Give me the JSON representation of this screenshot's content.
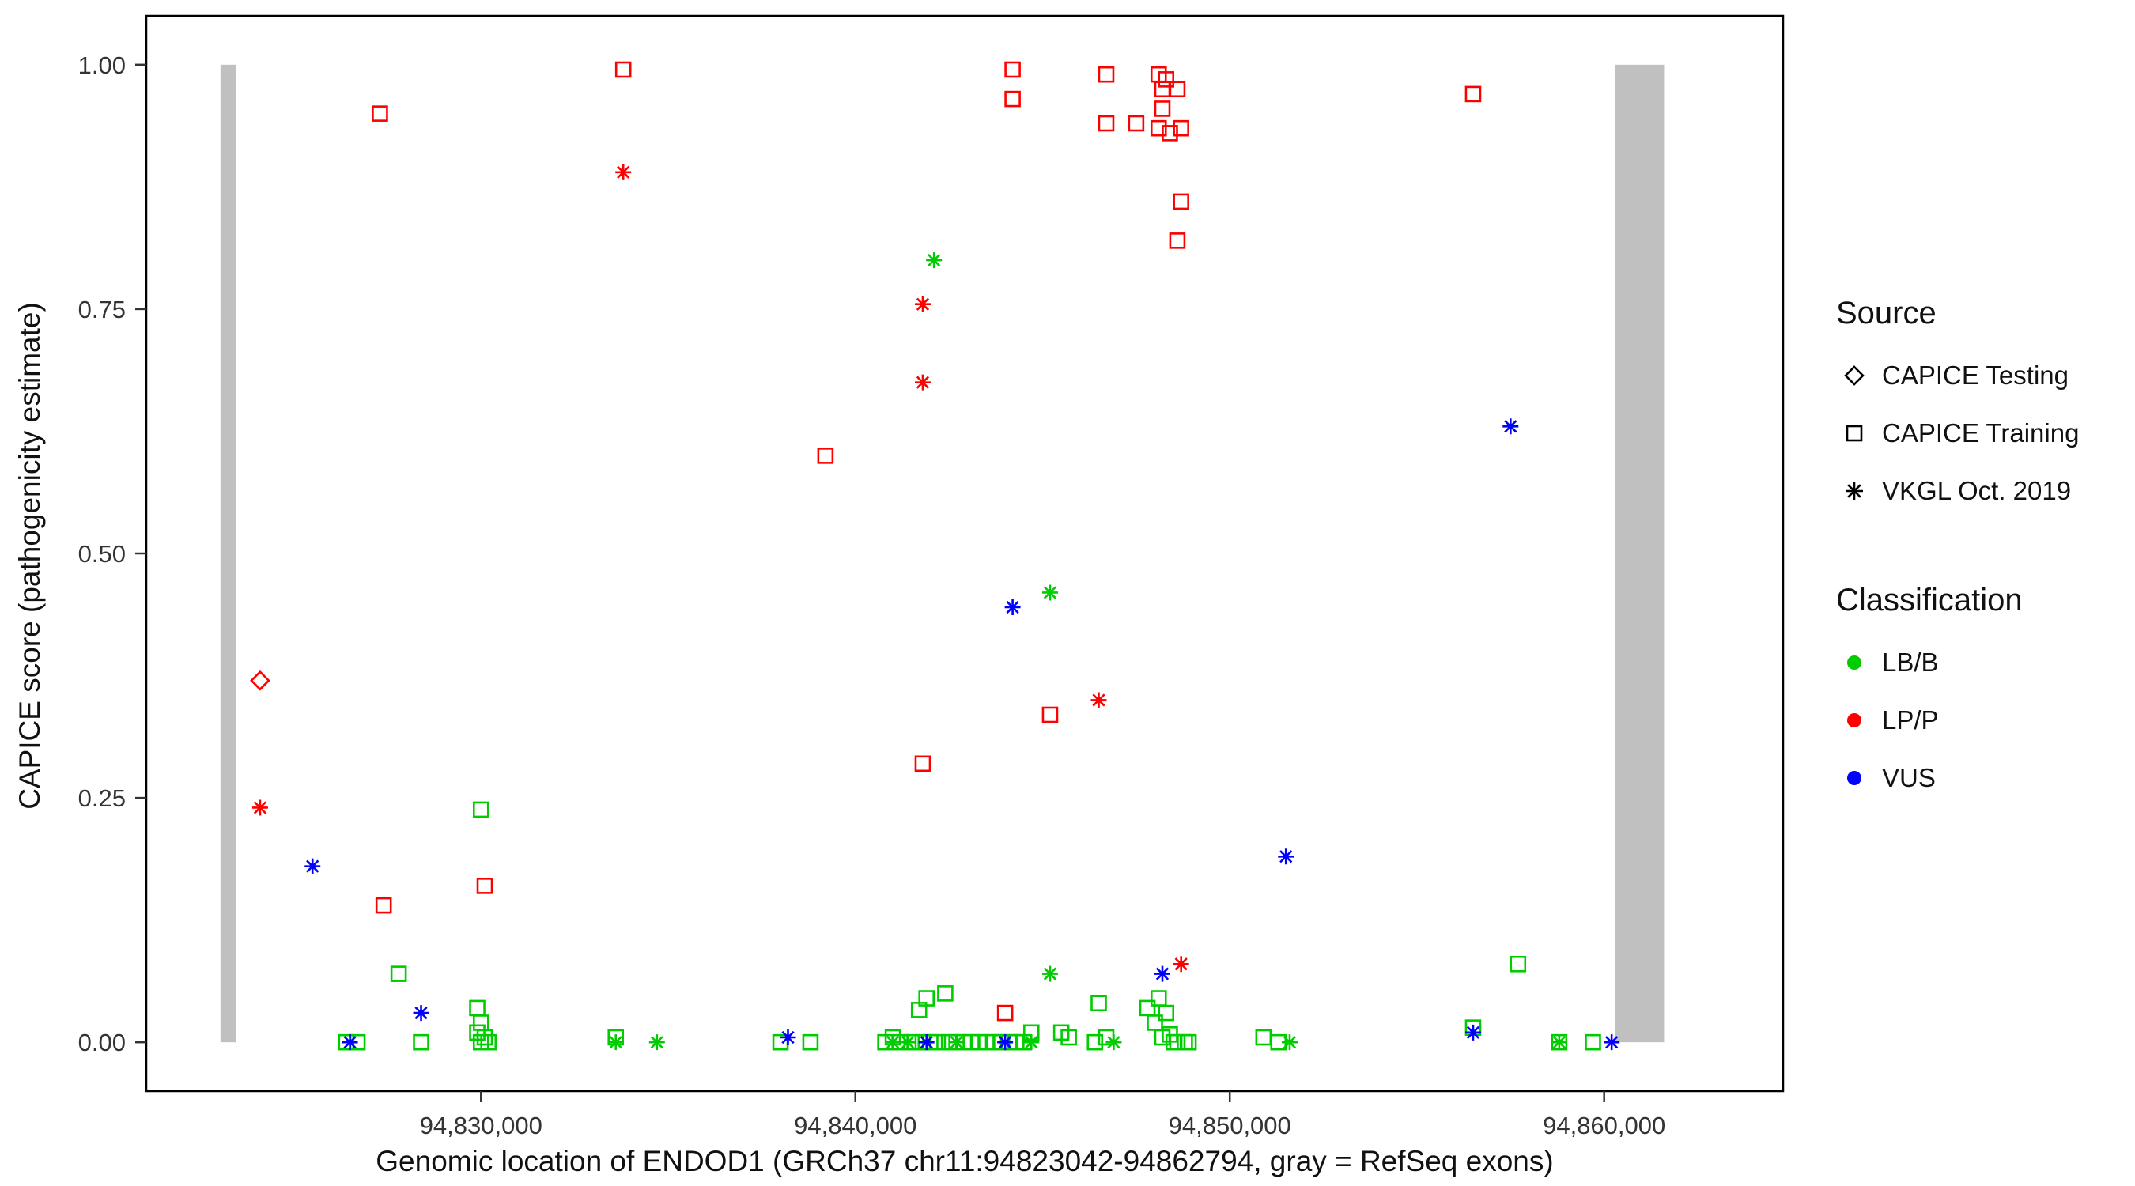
{
  "legend": {
    "source": {
      "title": "Source",
      "items": [
        {
          "label": "CAPICE Testing",
          "shape": "diamond"
        },
        {
          "label": "CAPICE Training",
          "shape": "square"
        },
        {
          "label": "VKGL Oct. 2019",
          "shape": "asterisk"
        }
      ]
    },
    "classification": {
      "title": "Classification",
      "items": [
        {
          "label": "LB/B",
          "color": "#00CC00"
        },
        {
          "label": "LP/P",
          "color": "#FF0000"
        },
        {
          "label": "VUS",
          "color": "#0000FF"
        }
      ]
    }
  },
  "chart_data": {
    "type": "scatter",
    "title": "",
    "xlabel": "Genomic location of ENDOD1 (GRCh37 chr11:94823042-94862794, gray = RefSeq exons)",
    "ylabel": "CAPICE score (pathogenicity estimate)",
    "xlim": [
      94821060,
      94864780
    ],
    "ylim": [
      -0.05,
      1.05
    ],
    "grid": false,
    "legend_position": "right",
    "x_ticks": [
      {
        "value": 94830000,
        "label": "94,830,000"
      },
      {
        "value": 94840000,
        "label": "94,840,000"
      },
      {
        "value": 94850000,
        "label": "94,850,000"
      },
      {
        "value": 94860000,
        "label": "94,860,000"
      }
    ],
    "y_ticks": [
      {
        "value": 1.0,
        "label": "1.00"
      },
      {
        "value": 0.75,
        "label": "0.75"
      },
      {
        "value": 0.5,
        "label": "0.50"
      },
      {
        "value": 0.25,
        "label": "0.25"
      },
      {
        "value": 0.0,
        "label": "0.00"
      }
    ],
    "exon_color": "#C0C0C0",
    "exon_bars": [
      {
        "x0": 94823042,
        "x1": 94823450,
        "y0": 0.0,
        "y1": 1.0
      },
      {
        "x0": 94860300,
        "x1": 94861600,
        "y0": 0.0,
        "y1": 1.0
      }
    ],
    "series": [
      {
        "name": "CAPICE Testing / LP/P",
        "source": "CAPICE Testing",
        "classification": "LP/P",
        "shape": "diamond",
        "color": "#FF0000",
        "points": [
          [
            94824100,
            0.37
          ]
        ]
      },
      {
        "name": "CAPICE Training / LP/P",
        "source": "CAPICE Training",
        "classification": "LP/P",
        "shape": "square",
        "color": "#FF0000",
        "points": [
          [
            94827300,
            0.95
          ],
          [
            94827400,
            0.14
          ],
          [
            94830100,
            0.16
          ],
          [
            94833800,
            0.995
          ],
          [
            94839200,
            0.6
          ],
          [
            94841800,
            0.285
          ],
          [
            94844000,
            0.03
          ],
          [
            94844200,
            0.995
          ],
          [
            94844200,
            0.965
          ],
          [
            94845200,
            0.335
          ],
          [
            94846700,
            0.99
          ],
          [
            94846700,
            0.94
          ],
          [
            94847500,
            0.94
          ],
          [
            94848100,
            0.99
          ],
          [
            94848200,
            0.975
          ],
          [
            94848300,
            0.985
          ],
          [
            94848200,
            0.955
          ],
          [
            94848100,
            0.935
          ],
          [
            94848400,
            0.93
          ],
          [
            94848600,
            0.975
          ],
          [
            94848700,
            0.935
          ],
          [
            94848700,
            0.86
          ],
          [
            94848600,
            0.82
          ],
          [
            94856500,
            0.97
          ]
        ]
      },
      {
        "name": "CAPICE Training / LB/B",
        "source": "CAPICE Training",
        "classification": "LB/B",
        "shape": "square",
        "color": "#00CC00",
        "points": [
          [
            94826400,
            0.0
          ],
          [
            94826700,
            0.0
          ],
          [
            94827800,
            0.07
          ],
          [
            94828400,
            0.0
          ],
          [
            94829900,
            0.035
          ],
          [
            94830000,
            0.238
          ],
          [
            94830000,
            0.02
          ],
          [
            94829900,
            0.01
          ],
          [
            94830100,
            0.005
          ],
          [
            94830000,
            0.0
          ],
          [
            94830200,
            0.0
          ],
          [
            94833600,
            0.005
          ],
          [
            94838000,
            0.0
          ],
          [
            94838800,
            0.0
          ],
          [
            94840800,
            0.0
          ],
          [
            94841000,
            0.005
          ],
          [
            94841200,
            0.0
          ],
          [
            94841500,
            0.0
          ],
          [
            94841700,
            0.033
          ],
          [
            94841900,
            0.045
          ],
          [
            94842400,
            0.05
          ],
          [
            94841800,
            0.0
          ],
          [
            94842000,
            0.0
          ],
          [
            94842200,
            0.0
          ],
          [
            94842500,
            0.0
          ],
          [
            94842700,
            0.0
          ],
          [
            94842900,
            0.0
          ],
          [
            94843100,
            0.0
          ],
          [
            94843300,
            0.0
          ],
          [
            94843500,
            0.0
          ],
          [
            94843700,
            0.0
          ],
          [
            94843900,
            0.0
          ],
          [
            94844100,
            0.0
          ],
          [
            94844300,
            0.0
          ],
          [
            94844500,
            0.0
          ],
          [
            94844700,
            0.01
          ],
          [
            94845500,
            0.01
          ],
          [
            94845700,
            0.005
          ],
          [
            94846500,
            0.04
          ],
          [
            94846400,
            0.0
          ],
          [
            94846700,
            0.005
          ],
          [
            94847800,
            0.035
          ],
          [
            94848000,
            0.02
          ],
          [
            94848100,
            0.045
          ],
          [
            94848300,
            0.03
          ],
          [
            94848200,
            0.005
          ],
          [
            94848400,
            0.008
          ],
          [
            94848500,
            0.0
          ],
          [
            94848600,
            0.0
          ],
          [
            94848800,
            0.0
          ],
          [
            94848900,
            0.0
          ],
          [
            94850900,
            0.005
          ],
          [
            94851300,
            0.0
          ],
          [
            94856500,
            0.015
          ],
          [
            94857700,
            0.08
          ],
          [
            94858800,
            0.0
          ],
          [
            94859700,
            0.0
          ]
        ]
      },
      {
        "name": "VKGL Oct. 2019 / LP/P",
        "source": "VKGL Oct. 2019",
        "classification": "LP/P",
        "shape": "asterisk",
        "color": "#FF0000",
        "points": [
          [
            94824100,
            0.24
          ],
          [
            94833800,
            0.89
          ],
          [
            94841800,
            0.675
          ],
          [
            94841800,
            0.755
          ],
          [
            94846500,
            0.35
          ],
          [
            94848700,
            0.08
          ]
        ]
      },
      {
        "name": "VKGL Oct. 2019 / LB/B",
        "source": "VKGL Oct. 2019",
        "classification": "LB/B",
        "shape": "asterisk",
        "color": "#00CC00",
        "points": [
          [
            94833600,
            0.0
          ],
          [
            94834700,
            0.0
          ],
          [
            94841000,
            0.0
          ],
          [
            94841400,
            0.0
          ],
          [
            94842100,
            0.8
          ],
          [
            94842700,
            0.0
          ],
          [
            94844700,
            0.0
          ],
          [
            94845200,
            0.46
          ],
          [
            94845200,
            0.07
          ],
          [
            94846900,
            0.0
          ],
          [
            94851600,
            0.0
          ],
          [
            94858800,
            0.0
          ]
        ]
      },
      {
        "name": "VKGL Oct. 2019 / VUS",
        "source": "VKGL Oct. 2019",
        "classification": "VUS",
        "shape": "asterisk",
        "color": "#0000FF",
        "points": [
          [
            94825500,
            0.18
          ],
          [
            94826500,
            0.0
          ],
          [
            94828400,
            0.03
          ],
          [
            94838200,
            0.005
          ],
          [
            94841900,
            0.0
          ],
          [
            94844000,
            0.0
          ],
          [
            94844200,
            0.445
          ],
          [
            94848200,
            0.07
          ],
          [
            94851500,
            0.19
          ],
          [
            94856500,
            0.01
          ],
          [
            94857500,
            0.63
          ],
          [
            94860200,
            0.0
          ]
        ]
      }
    ]
  }
}
